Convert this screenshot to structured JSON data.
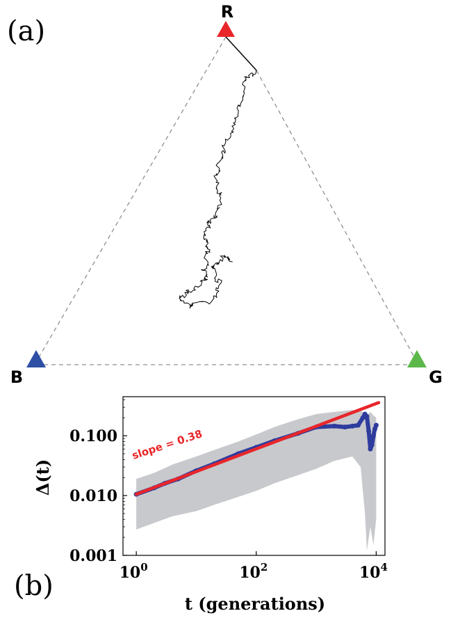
{
  "panel_a": {
    "label": "(a)",
    "vertices": [
      {
        "name": "R",
        "color": "#e8262a"
      },
      {
        "name": "B",
        "color": "#2e4fa3"
      },
      {
        "name": "G",
        "color": "#5cb84a"
      }
    ],
    "edge_color": "#8c8f99",
    "walk_color": "#000000"
  },
  "panel_b": {
    "label": "(b)"
  },
  "chart_data": {
    "type": "line",
    "xlabel": "t (generations)",
    "ylabel": "Δ(t)",
    "xscale": "log",
    "yscale": "log",
    "xlim": [
      0.6,
      14000
    ],
    "ylim": [
      0.001,
      0.45
    ],
    "xticks": [
      {
        "value": 1,
        "base": "10",
        "exp": "0"
      },
      {
        "value": 100,
        "base": "10",
        "exp": "2"
      },
      {
        "value": 10000,
        "base": "10",
        "exp": "4"
      }
    ],
    "yticks": [
      {
        "value": 0.001,
        "label": "0.001"
      },
      {
        "value": 0.01,
        "label": "0.010"
      },
      {
        "value": 0.1,
        "label": "0.100"
      }
    ],
    "grid": false,
    "band": {
      "color": "#c8c9cc",
      "x": [
        1,
        2,
        4,
        10,
        20,
        50,
        100,
        200,
        500,
        1000,
        2000,
        4000,
        5500,
        6500,
        7000,
        8000,
        9000,
        10000
      ],
      "upper": [
        0.019,
        0.024,
        0.033,
        0.045,
        0.058,
        0.08,
        0.105,
        0.14,
        0.19,
        0.23,
        0.25,
        0.27,
        0.26,
        0.24,
        0.22,
        0.25,
        0.22,
        0.2
      ],
      "lower": [
        0.0027,
        0.0035,
        0.0045,
        0.0055,
        0.007,
        0.0095,
        0.012,
        0.016,
        0.022,
        0.028,
        0.038,
        0.045,
        0.03,
        0.005,
        0.0012,
        0.003,
        0.0015,
        0.004
      ]
    },
    "series": [
      {
        "color": "#2e3c9e",
        "x": [
          1,
          2,
          3,
          5,
          10,
          20,
          50,
          100,
          200,
          500,
          1000,
          2000,
          3000,
          4000,
          5000,
          6000,
          6500,
          7000,
          7500,
          8000,
          8500,
          9000,
          9500,
          10000
        ],
        "y": [
          0.0105,
          0.0135,
          0.016,
          0.019,
          0.026,
          0.034,
          0.05,
          0.064,
          0.082,
          0.11,
          0.14,
          0.145,
          0.14,
          0.145,
          0.15,
          0.2,
          0.23,
          0.21,
          0.12,
          0.06,
          0.07,
          0.1,
          0.13,
          0.15
        ]
      }
    ],
    "fit": {
      "color": "#e8262a",
      "slope": 0.38,
      "label": "slope = 0.38",
      "x": [
        1,
        11000
      ],
      "y": [
        0.0105,
        0.358
      ]
    }
  }
}
